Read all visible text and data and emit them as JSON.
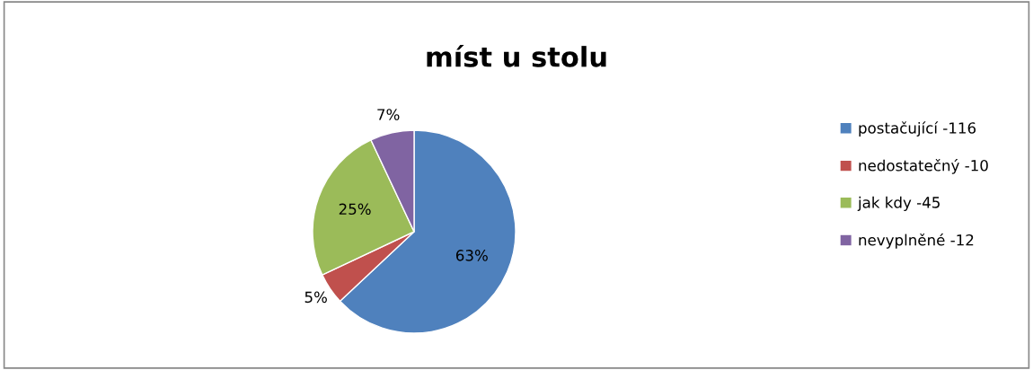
{
  "chart_data": {
    "type": "pie",
    "title": "míst u stolu",
    "categories": [
      "postačující -116",
      "nedostatečný -10",
      "jak kdy -45",
      "nevyplněné -12"
    ],
    "values": [
      63,
      5,
      25,
      7
    ],
    "colors": [
      "#4f81bd",
      "#c0504d",
      "#9bbb59",
      "#8064a2"
    ],
    "value_labels": [
      "63%",
      "5%",
      "25%",
      "7%"
    ],
    "legend": "right"
  }
}
